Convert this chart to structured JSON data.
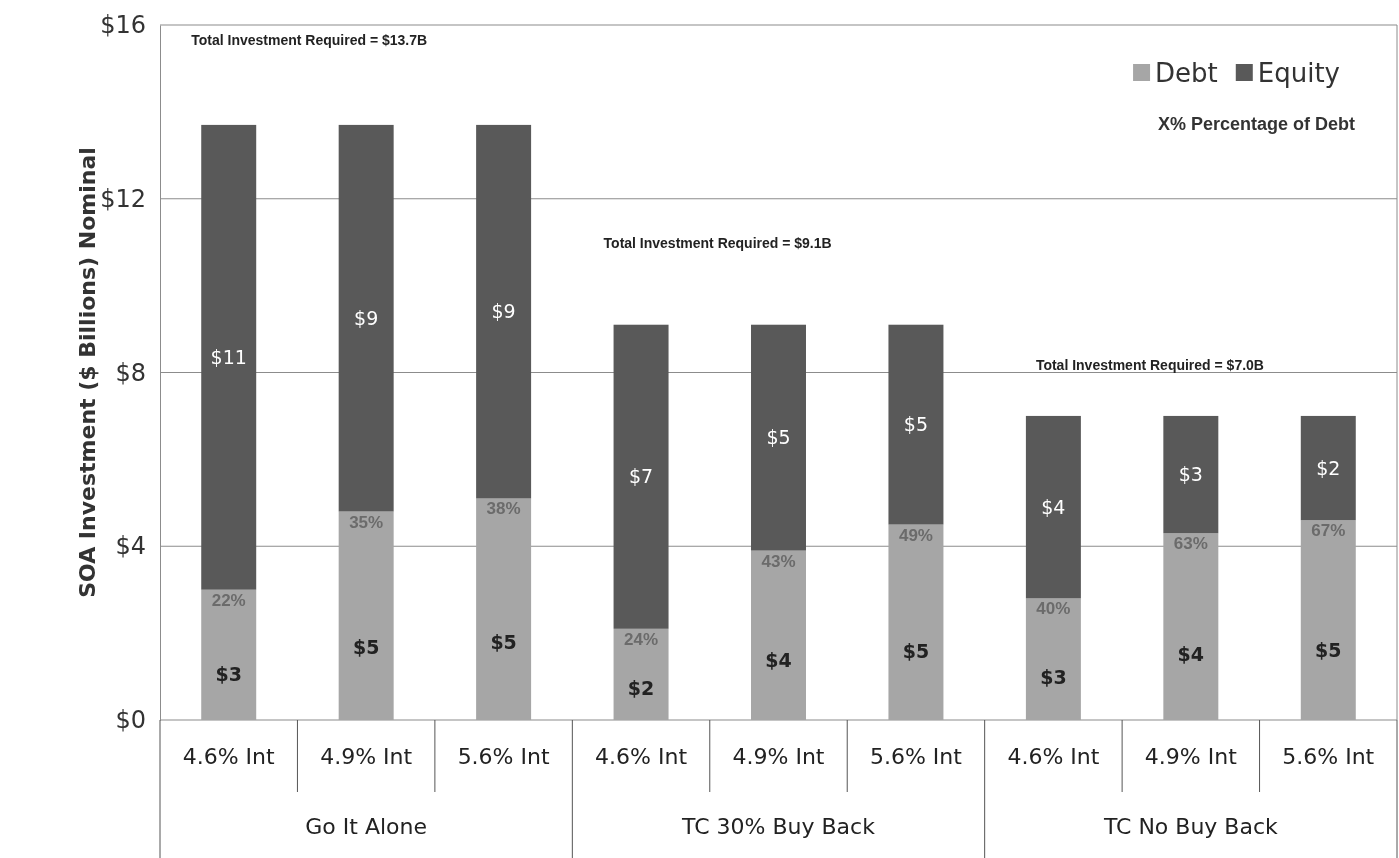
{
  "chart_data": {
    "type": "bar",
    "stacked": true,
    "ylabel": "SOA Investment ($ Billions) Nominal",
    "categories": [
      "4.6% Int",
      "4.9% Int",
      "5.6% Int",
      "4.6% Int",
      "4.9% Int",
      "5.6% Int",
      "4.6% Int",
      "4.9% Int",
      "5.6% Int"
    ],
    "series": [
      {
        "name": "Debt",
        "color": "#a6a6a6",
        "values": [
          3.0,
          4.8,
          5.1,
          2.1,
          3.9,
          4.5,
          2.8,
          4.3,
          4.6
        ],
        "value_labels": [
          "$3",
          "$5",
          "$5",
          "$2",
          "$4",
          "$5",
          "$3",
          "$4",
          "$5"
        ]
      },
      {
        "name": "Equity",
        "color": "#595959",
        "values": [
          10.7,
          8.9,
          8.6,
          7.0,
          5.2,
          4.6,
          4.2,
          2.7,
          2.4
        ],
        "value_labels": [
          "$11",
          "$9",
          "$9",
          "$7",
          "$5",
          "$5",
          "$4",
          "$3",
          "$2"
        ]
      }
    ],
    "ylim": [
      0,
      16
    ],
    "yticks": [
      {
        "value": 0,
        "label": "$0"
      },
      {
        "value": 4,
        "label": "$4"
      },
      {
        "value": 8,
        "label": "$8"
      },
      {
        "value": 12,
        "label": "$12"
      },
      {
        "value": 16,
        "label": "$16"
      }
    ],
    "grid": "y",
    "legend": "top right",
    "annotations": [
      "Total Investment Required = $13.7B",
      "Total Investment Required = $9.1B",
      "Total Investment Required = $7.0B",
      "X% Percentage of Debt",
      "Go It Alone",
      "TC 30% Buy Back",
      "TC No Buy Back",
      "22%",
      "35%",
      "38%",
      "24%",
      "43%",
      "49%",
      "40%",
      "63%",
      "67%"
    ]
  }
}
